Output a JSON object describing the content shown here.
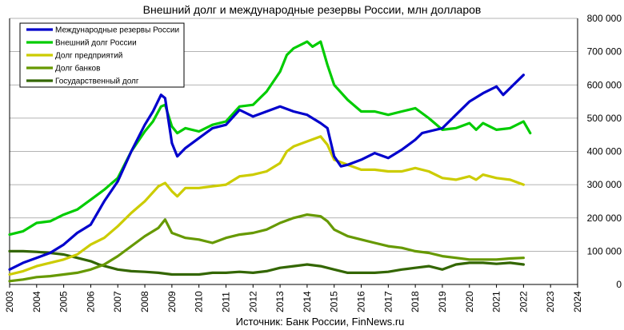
{
  "chart_data": {
    "type": "line",
    "title": "Внешний долг и международные резервы России, млн долларов",
    "source": "Источник: Банк России, FinNews.ru",
    "x_ticks": [
      "2003",
      "2004",
      "2005",
      "2006",
      "2007",
      "2008",
      "2009",
      "2010",
      "2011",
      "2012",
      "2013",
      "2014",
      "2015",
      "2016",
      "2017",
      "2018",
      "2019",
      "2020",
      "2021",
      "2022",
      "2023",
      "2024"
    ],
    "y_ticks": [
      "0",
      "100 000",
      "200 000",
      "300 000",
      "400 000",
      "500 000",
      "600 000",
      "700 000",
      "800 000"
    ],
    "xlim": [
      2003,
      2024
    ],
    "ylim": [
      0,
      800000
    ],
    "grid": "horizontal",
    "legend_position": "top-left",
    "colors": {
      "reserves": "#0000cc",
      "external_debt": "#00cc00",
      "corporate_debt": "#cccc00",
      "bank_debt": "#669900",
      "government_debt": "#336600"
    },
    "series": [
      {
        "name": "Международные  резервы России",
        "key": "reserves",
        "x": [
          2003.0,
          2003.5,
          2004.0,
          2004.5,
          2005.0,
          2005.5,
          2006.0,
          2006.5,
          2007.0,
          2007.5,
          2008.0,
          2008.3,
          2008.6,
          2008.75,
          2009.0,
          2009.2,
          2009.5,
          2010.0,
          2010.5,
          2011.0,
          2011.5,
          2012.0,
          2012.5,
          2013.0,
          2013.5,
          2014.0,
          2014.5,
          2014.75,
          2015.0,
          2015.25,
          2015.5,
          2016.0,
          2016.5,
          2017.0,
          2017.5,
          2018.0,
          2018.25,
          2018.5,
          2019.0,
          2019.5,
          2020.0,
          2020.5,
          2021.0,
          2021.25,
          2021.5,
          2022.0
        ],
        "y": [
          45000,
          65000,
          80000,
          95000,
          120000,
          155000,
          180000,
          250000,
          310000,
          400000,
          480000,
          520000,
          570000,
          560000,
          425000,
          385000,
          410000,
          440000,
          470000,
          480000,
          525000,
          505000,
          520000,
          535000,
          520000,
          510000,
          485000,
          470000,
          385000,
          355000,
          360000,
          375000,
          395000,
          380000,
          405000,
          435000,
          455000,
          460000,
          470000,
          510000,
          550000,
          575000,
          595000,
          570000,
          590000,
          630000
        ]
      },
      {
        "name": "Внешний долг России",
        "key": "external_debt",
        "x": [
          2003.0,
          2003.5,
          2004.0,
          2004.5,
          2005.0,
          2005.5,
          2006.0,
          2006.5,
          2007.0,
          2007.5,
          2008.0,
          2008.3,
          2008.6,
          2008.75,
          2009.0,
          2009.2,
          2009.5,
          2010.0,
          2010.5,
          2011.0,
          2011.5,
          2012.0,
          2012.5,
          2013.0,
          2013.25,
          2013.5,
          2014.0,
          2014.2,
          2014.5,
          2014.75,
          2015.0,
          2015.5,
          2016.0,
          2016.5,
          2017.0,
          2017.5,
          2018.0,
          2018.5,
          2019.0,
          2019.5,
          2020.0,
          2020.25,
          2020.5,
          2021.0,
          2021.5,
          2022.0,
          2022.25
        ],
        "y": [
          150000,
          160000,
          185000,
          190000,
          210000,
          225000,
          255000,
          285000,
          320000,
          400000,
          460000,
          490000,
          535000,
          540000,
          475000,
          455000,
          470000,
          460000,
          480000,
          490000,
          535000,
          540000,
          580000,
          640000,
          690000,
          710000,
          730000,
          715000,
          730000,
          660000,
          600000,
          555000,
          520000,
          520000,
          510000,
          520000,
          530000,
          500000,
          465000,
          470000,
          485000,
          465000,
          485000,
          465000,
          470000,
          490000,
          455000
        ]
      },
      {
        "name": "Долг предприятий",
        "key": "corporate_debt",
        "x": [
          2003.0,
          2003.5,
          2004.0,
          2004.5,
          2005.0,
          2005.5,
          2006.0,
          2006.5,
          2007.0,
          2007.5,
          2008.0,
          2008.5,
          2008.75,
          2009.0,
          2009.2,
          2009.5,
          2010.0,
          2010.5,
          2011.0,
          2011.5,
          2012.0,
          2012.5,
          2013.0,
          2013.25,
          2013.5,
          2014.0,
          2014.5,
          2014.75,
          2015.0,
          2015.5,
          2016.0,
          2016.5,
          2017.0,
          2017.5,
          2018.0,
          2018.5,
          2019.0,
          2019.5,
          2020.0,
          2020.25,
          2020.5,
          2021.0,
          2021.5,
          2022.0
        ],
        "y": [
          30000,
          40000,
          55000,
          65000,
          75000,
          90000,
          120000,
          140000,
          175000,
          215000,
          250000,
          295000,
          305000,
          280000,
          265000,
          290000,
          290000,
          295000,
          300000,
          325000,
          330000,
          340000,
          365000,
          400000,
          415000,
          430000,
          445000,
          420000,
          375000,
          360000,
          345000,
          345000,
          340000,
          340000,
          350000,
          340000,
          320000,
          315000,
          325000,
          315000,
          330000,
          320000,
          315000,
          300000
        ]
      },
      {
        "name": "Долг  банков",
        "key": "bank_debt",
        "x": [
          2003.0,
          2003.5,
          2004.0,
          2004.5,
          2005.0,
          2005.5,
          2006.0,
          2006.5,
          2007.0,
          2007.5,
          2008.0,
          2008.5,
          2008.75,
          2009.0,
          2009.5,
          2010.0,
          2010.5,
          2011.0,
          2011.5,
          2012.0,
          2012.5,
          2013.0,
          2013.5,
          2014.0,
          2014.5,
          2014.75,
          2015.0,
          2015.5,
          2016.0,
          2016.5,
          2017.0,
          2017.5,
          2018.0,
          2018.5,
          2019.0,
          2019.5,
          2020.0,
          2020.5,
          2021.0,
          2021.5,
          2022.0
        ],
        "y": [
          10000,
          15000,
          22000,
          25000,
          30000,
          35000,
          45000,
          60000,
          85000,
          115000,
          145000,
          170000,
          195000,
          155000,
          140000,
          135000,
          125000,
          140000,
          150000,
          155000,
          165000,
          185000,
          200000,
          210000,
          205000,
          190000,
          165000,
          145000,
          135000,
          125000,
          115000,
          110000,
          100000,
          95000,
          85000,
          80000,
          75000,
          75000,
          75000,
          78000,
          80000
        ]
      },
      {
        "name": "Государственный долг",
        "key": "government_debt",
        "x": [
          2003.0,
          2003.5,
          2004.0,
          2004.5,
          2005.0,
          2005.5,
          2006.0,
          2006.3,
          2007.0,
          2007.5,
          2008.0,
          2008.5,
          2009.0,
          2009.5,
          2010.0,
          2010.5,
          2011.0,
          2011.5,
          2012.0,
          2012.5,
          2013.0,
          2013.5,
          2014.0,
          2014.5,
          2015.0,
          2015.5,
          2016.0,
          2016.5,
          2017.0,
          2017.5,
          2018.0,
          2018.5,
          2019.0,
          2019.5,
          2020.0,
          2020.5,
          2021.0,
          2021.5,
          2022.0
        ],
        "y": [
          100000,
          100000,
          98000,
          95000,
          90000,
          80000,
          70000,
          60000,
          45000,
          40000,
          38000,
          35000,
          30000,
          30000,
          30000,
          35000,
          35000,
          38000,
          35000,
          40000,
          50000,
          55000,
          60000,
          55000,
          45000,
          35000,
          35000,
          35000,
          38000,
          45000,
          50000,
          55000,
          45000,
          60000,
          65000,
          65000,
          62000,
          65000,
          60000
        ]
      }
    ]
  }
}
